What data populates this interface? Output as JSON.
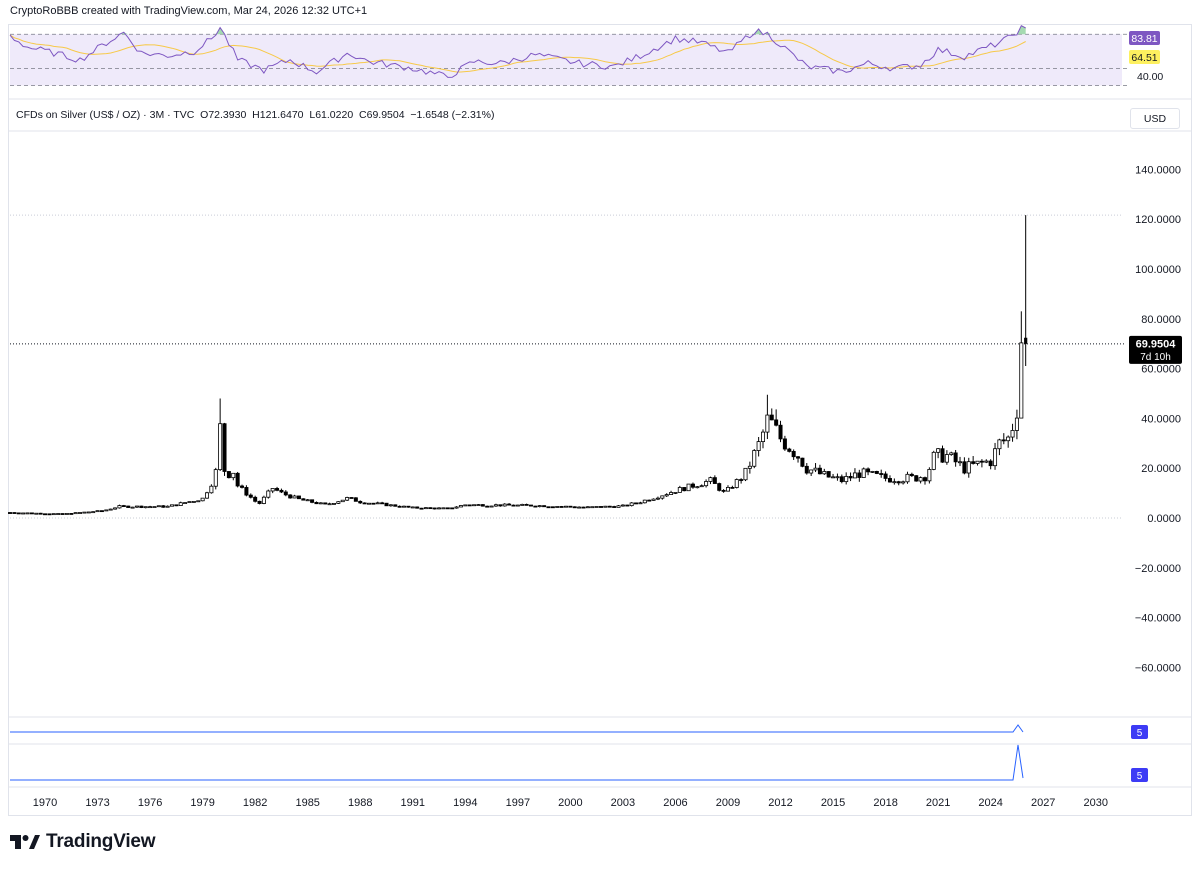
{
  "header": {
    "attribution": "CryptoRoBBB created with TradingView.com, Mar 24, 2026 12:32 UTC+1"
  },
  "legend": {
    "symbol": "CFDs on Silver (US$ / OZ) · 3M · TVC",
    "open": "O72.3930",
    "high": "H121.6470",
    "low": "L61.0220",
    "close": "C69.9504",
    "change": "−1.6548 (−2.31%)"
  },
  "currency_button": "USD",
  "price_label": {
    "value": "69.9504",
    "countdown": "7d 10h",
    "color": "#000000"
  },
  "rsi_labels": {
    "rsi": "83.81",
    "ma": "64.51",
    "level": "40.00"
  },
  "indicator_badges": [
    "5",
    "5"
  ],
  "brand": {
    "name": "TradingView"
  },
  "colors": {
    "rsi_line": "#7e57c2",
    "rsi_ma": "#f7c948",
    "rsi_label_bg": "#7e57c2",
    "ma_label_bg": "#fdf05f",
    "indicator": "#2962ff",
    "badge_bg": "#3d3bf5",
    "candle": "#000000"
  },
  "chart_data": [
    {
      "type": "candlestick",
      "title": "CFDs on Silver (US$ / OZ) · 3M · TVC",
      "y_ticks": [
        "140.0000",
        "120.0000",
        "100.0000",
        "80.0000",
        "60.0000",
        "40.0000",
        "20.0000",
        "0.0000",
        "-20.0000",
        "-40.0000",
        "-60.0000"
      ],
      "x_ticks": [
        "1970",
        "1973",
        "1976",
        "1979",
        "1982",
        "1985",
        "1988",
        "1991",
        "1994",
        "1997",
        "2000",
        "2003",
        "2006",
        "2009",
        "2012",
        "2015",
        "2018",
        "2021",
        "2024",
        "2027",
        "2030"
      ],
      "ylim": [
        -80,
        150
      ],
      "xlim": [
        1968.0,
        2031.5
      ],
      "grid": false,
      "last": {
        "open": 72.393,
        "high": 121.647,
        "low": 61.022,
        "close": 69.9504
      },
      "anchors": [
        {
          "x": 1968.0,
          "y": 2.2
        },
        {
          "x": 1971.0,
          "y": 1.6
        },
        {
          "x": 1973.3,
          "y": 2.9
        },
        {
          "x": 1974.2,
          "y": 4.6
        },
        {
          "x": 1977.0,
          "y": 4.6
        },
        {
          "x": 1979.0,
          "y": 7.8
        },
        {
          "x": 1979.5,
          "y": 14
        },
        {
          "x": 1979.9,
          "y": 21
        },
        {
          "x": 1980.0,
          "y": 36
        },
        {
          "x": 1980.3,
          "y": 16
        },
        {
          "x": 1980.7,
          "y": 20
        },
        {
          "x": 1981.0,
          "y": 13
        },
        {
          "x": 1982.2,
          "y": 5.5
        },
        {
          "x": 1983.0,
          "y": 12
        },
        {
          "x": 1983.5,
          "y": 10
        },
        {
          "x": 1984.5,
          "y": 7.5
        },
        {
          "x": 1986.0,
          "y": 5.3
        },
        {
          "x": 1987.3,
          "y": 8.0
        },
        {
          "x": 1988.0,
          "y": 6.5
        },
        {
          "x": 1991.0,
          "y": 4.1
        },
        {
          "x": 1993.0,
          "y": 3.8
        },
        {
          "x": 1994.0,
          "y": 5.3
        },
        {
          "x": 1998.0,
          "y": 5.0
        },
        {
          "x": 2001.0,
          "y": 4.3
        },
        {
          "x": 2003.0,
          "y": 4.8
        },
        {
          "x": 2004.0,
          "y": 6.5
        },
        {
          "x": 2006.0,
          "y": 11
        },
        {
          "x": 2008.0,
          "y": 15
        },
        {
          "x": 2008.8,
          "y": 10
        },
        {
          "x": 2010.0,
          "y": 18
        },
        {
          "x": 2010.8,
          "y": 30
        },
        {
          "x": 2011.3,
          "y": 40
        },
        {
          "x": 2012.0,
          "y": 32
        },
        {
          "x": 2013.0,
          "y": 25
        },
        {
          "x": 2013.5,
          "y": 20
        },
        {
          "x": 2014.5,
          "y": 17
        },
        {
          "x": 2015.5,
          "y": 15
        },
        {
          "x": 2016.5,
          "y": 18
        },
        {
          "x": 2018.0,
          "y": 16
        },
        {
          "x": 2019.5,
          "y": 16
        },
        {
          "x": 2020.3,
          "y": 17
        },
        {
          "x": 2020.8,
          "y": 25
        },
        {
          "x": 2021.5,
          "y": 25
        },
        {
          "x": 2022.5,
          "y": 20
        },
        {
          "x": 2024.0,
          "y": 23
        },
        {
          "x": 2024.5,
          "y": 30
        },
        {
          "x": 2025.0,
          "y": 32
        },
        {
          "x": 2025.3,
          "y": 38
        },
        {
          "x": 2025.55,
          "y": 46
        },
        {
          "x": 2025.75,
          "y": 72
        },
        {
          "x": 2026.0,
          "y": 70
        }
      ]
    },
    {
      "type": "line",
      "title": "",
      "series": [
        {
          "values": [
            83.81
          ]
        },
        {
          "values": [
            64.51
          ]
        }
      ],
      "ylim": [
        10,
        92
      ],
      "levels": [
        80,
        40,
        20
      ],
      "anchors": [
        {
          "x": 1968.0,
          "y": 78
        },
        {
          "x": 1969.0,
          "y": 65
        },
        {
          "x": 1970.5,
          "y": 58
        },
        {
          "x": 1972.0,
          "y": 50
        },
        {
          "x": 1973.5,
          "y": 70
        },
        {
          "x": 1974.5,
          "y": 82
        },
        {
          "x": 1975.5,
          "y": 58
        },
        {
          "x": 1977.0,
          "y": 55
        },
        {
          "x": 1978.5,
          "y": 60
        },
        {
          "x": 1979.5,
          "y": 75
        },
        {
          "x": 1980.0,
          "y": 88
        },
        {
          "x": 1981.0,
          "y": 50
        },
        {
          "x": 1982.5,
          "y": 38
        },
        {
          "x": 1984.0,
          "y": 50
        },
        {
          "x": 1985.5,
          "y": 36
        },
        {
          "x": 1987.3,
          "y": 58
        },
        {
          "x": 1988.5,
          "y": 48
        },
        {
          "x": 1991.0,
          "y": 40
        },
        {
          "x": 1993.0,
          "y": 30
        },
        {
          "x": 1994.5,
          "y": 48
        },
        {
          "x": 1996.0,
          "y": 46
        },
        {
          "x": 1998.0,
          "y": 56
        },
        {
          "x": 2000.5,
          "y": 46
        },
        {
          "x": 2002.5,
          "y": 42
        },
        {
          "x": 2004.0,
          "y": 55
        },
        {
          "x": 2006.0,
          "y": 75
        },
        {
          "x": 2007.5,
          "y": 70
        },
        {
          "x": 2009.0,
          "y": 58
        },
        {
          "x": 2010.5,
          "y": 84
        },
        {
          "x": 2011.3,
          "y": 80
        },
        {
          "x": 2012.0,
          "y": 68
        },
        {
          "x": 2013.5,
          "y": 42
        },
        {
          "x": 2015.5,
          "y": 36
        },
        {
          "x": 2017.0,
          "y": 46
        },
        {
          "x": 2018.5,
          "y": 40
        },
        {
          "x": 2020.0,
          "y": 44
        },
        {
          "x": 2021.0,
          "y": 62
        },
        {
          "x": 2022.5,
          "y": 54
        },
        {
          "x": 2024.0,
          "y": 66
        },
        {
          "x": 2025.0,
          "y": 75
        },
        {
          "x": 2025.8,
          "y": 88
        },
        {
          "x": 2026.0,
          "y": 84
        }
      ]
    }
  ]
}
